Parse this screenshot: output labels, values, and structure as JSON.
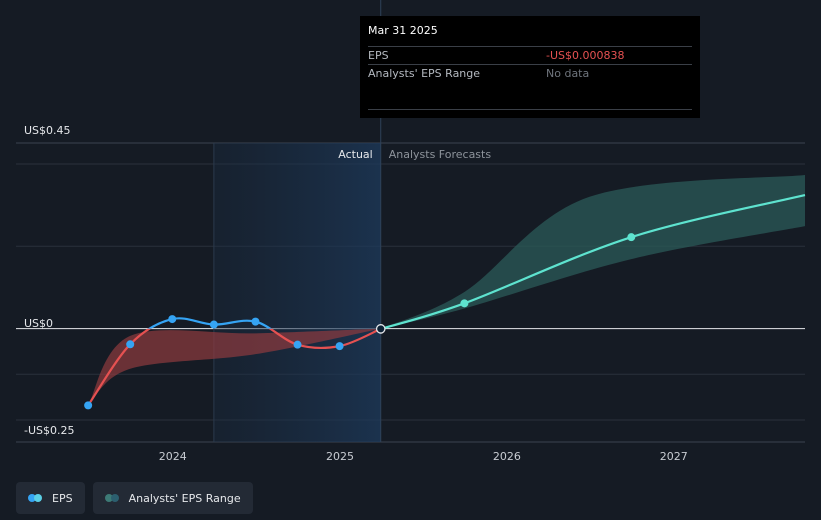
{
  "tooltip": {
    "date": "Mar 31 2025",
    "eps_label": "EPS",
    "eps_value": "-US$0.000838",
    "range_label": "Analysts' EPS Range",
    "range_value": "No data"
  },
  "legend": [
    {
      "label": "EPS",
      "dot_colors": [
        "#35a4f4",
        "#5bd0e6"
      ]
    },
    {
      "label": "Analysts' EPS Range",
      "dot_colors": [
        "#3d7a76",
        "#2c5f6f"
      ]
    }
  ],
  "chart_data": {
    "type": "line",
    "y_ticks": [
      {
        "value": 0.45,
        "label": "US$0.45"
      },
      {
        "value": 0,
        "label": "US$0"
      },
      {
        "value": -0.25,
        "label": "-US$0.25"
      }
    ],
    "x_ticks": [
      {
        "value": "2024-01-01",
        "label": "2024"
      },
      {
        "value": "2025-01-01",
        "label": "2025"
      },
      {
        "value": "2026-01-01",
        "label": "2026"
      },
      {
        "value": "2027-01-01",
        "label": "2027"
      }
    ],
    "ylim": [
      -0.25,
      0.45
    ],
    "xlim": [
      "2023-04-01",
      "2027-10-15"
    ],
    "grid": true,
    "divider_date": "2025-03-31",
    "past_window_start": "2024-03-31",
    "region_labels": {
      "actual": "Actual",
      "forecast": "Analysts Forecasts"
    },
    "colors": {
      "eps_actual": "#35a4f4",
      "eps_negative": "#e55151",
      "eps_forecast": "#5ee3cf",
      "forecast_band": "#2b5b58",
      "past_band": "#8e3a3f"
    },
    "series": [
      {
        "name": "EPS",
        "points": [
          {
            "x": "2023-06-30",
            "y": -0.21
          },
          {
            "x": "2023-09-30",
            "y": -0.043
          },
          {
            "x": "2023-12-31",
            "y": 0.026
          },
          {
            "x": "2024-03-31",
            "y": 0.011
          },
          {
            "x": "2024-06-30",
            "y": 0.019
          },
          {
            "x": "2024-09-30",
            "y": -0.044
          },
          {
            "x": "2024-12-31",
            "y": -0.048
          },
          {
            "x": "2025-03-31",
            "y": -0.000838
          }
        ]
      },
      {
        "name": "Analysts Forecasts",
        "points": [
          {
            "x": "2025-03-31",
            "y": -0.000838
          },
          {
            "x": "2025-09-30",
            "y": 0.069
          },
          {
            "x": "2026-09-30",
            "y": 0.25
          },
          {
            "x": "2027-10-15",
            "y": 0.365
          }
        ]
      }
    ],
    "forecast_range": {
      "upper": [
        {
          "x": "2025-03-31",
          "y": 0
        },
        {
          "x": "2025-09-30",
          "y": 0.1
        },
        {
          "x": "2026-06-30",
          "y": 0.36
        },
        {
          "x": "2027-10-15",
          "y": 0.42
        }
      ],
      "lower": [
        {
          "x": "2025-03-31",
          "y": 0
        },
        {
          "x": "2025-09-30",
          "y": 0.055
        },
        {
          "x": "2026-09-30",
          "y": 0.19
        },
        {
          "x": "2027-10-15",
          "y": 0.28
        }
      ]
    },
    "past_range": {
      "upper": [
        {
          "x": "2023-06-30",
          "y": -0.21
        },
        {
          "x": "2023-09-30",
          "y": -0.02
        },
        {
          "x": "2024-06-30",
          "y": -0.013
        },
        {
          "x": "2025-03-31",
          "y": 0
        }
      ],
      "lower": [
        {
          "x": "2023-06-30",
          "y": -0.21
        },
        {
          "x": "2023-09-30",
          "y": -0.11
        },
        {
          "x": "2024-06-30",
          "y": -0.07
        },
        {
          "x": "2025-03-31",
          "y": 0
        }
      ]
    }
  }
}
